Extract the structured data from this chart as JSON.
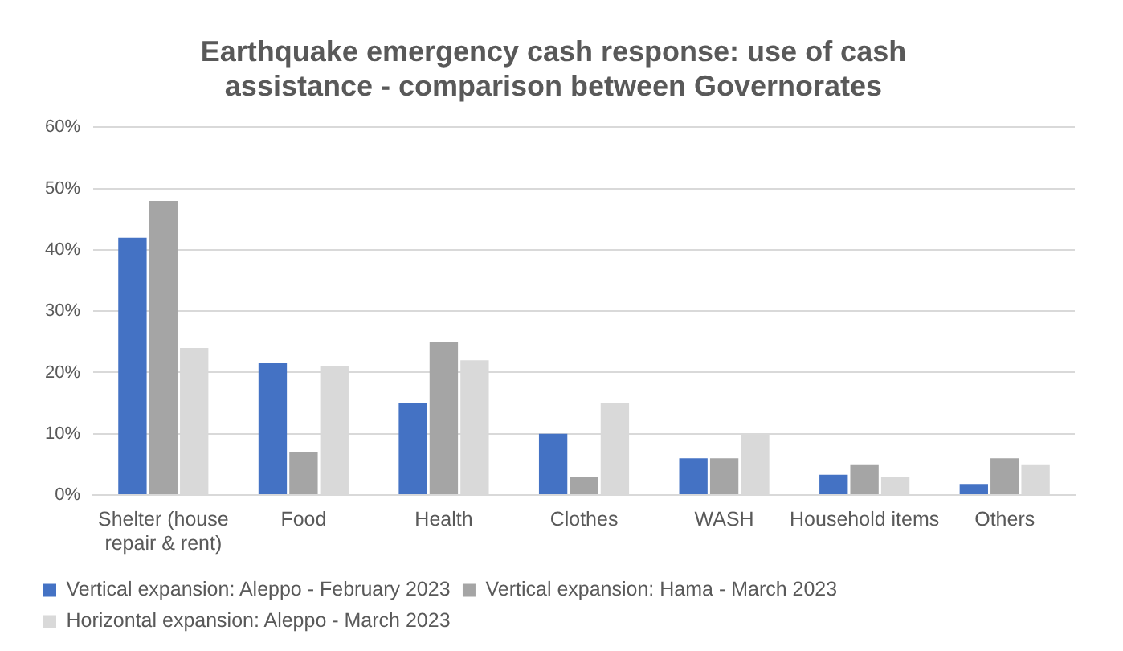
{
  "chart_data": {
    "type": "bar",
    "title": "Earthquake emergency cash response: use of cash assistance - comparison between Governorates",
    "categories": [
      "Shelter (house repair & rent)",
      "Food",
      "Health",
      "Clothes",
      "WASH",
      "Household items",
      "Others"
    ],
    "series": [
      {
        "name": "Vertical expansion: Aleppo - February 2023",
        "color": "#4472c4",
        "values": [
          42,
          21.5,
          15,
          10,
          6,
          3.3,
          1.8
        ]
      },
      {
        "name": "Vertical expansion: Hama - March 2023",
        "color": "#a5a5a5",
        "values": [
          48,
          7,
          25,
          3,
          6,
          5,
          6
        ]
      },
      {
        "name": "Horizontal expansion: Aleppo - March 2023",
        "color": "#d9d9d9",
        "values": [
          24,
          21,
          22,
          15,
          10,
          3,
          5
        ]
      }
    ],
    "ylim": [
      0,
      60
    ],
    "yticks": [
      {
        "value": 0,
        "label": "0%"
      },
      {
        "value": 10,
        "label": "10%"
      },
      {
        "value": 20,
        "label": "20%"
      },
      {
        "value": 30,
        "label": "30%"
      },
      {
        "value": 40,
        "label": "40%"
      },
      {
        "value": 50,
        "label": "50%"
      },
      {
        "value": 60,
        "label": "60%"
      }
    ],
    "grid": "y",
    "legend": "bottom"
  }
}
